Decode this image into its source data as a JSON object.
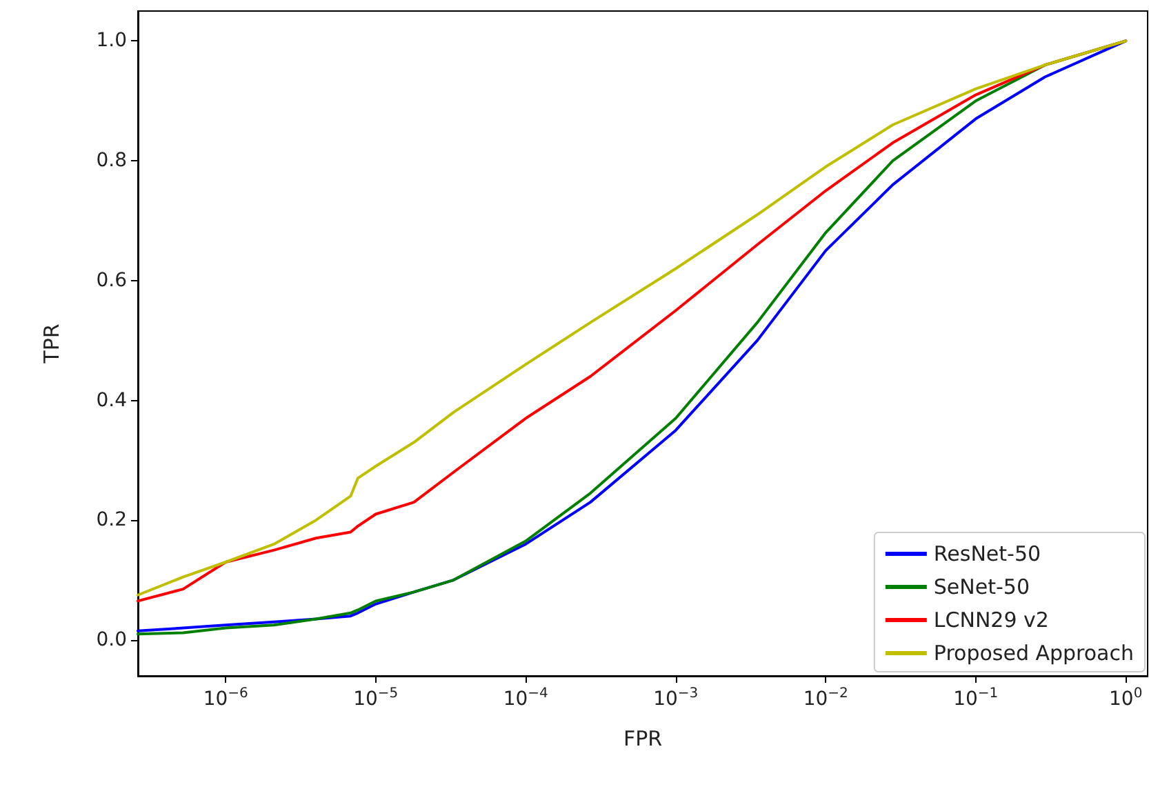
{
  "chart_data": {
    "type": "line",
    "xlabel": "FPR",
    "ylabel": "TPR",
    "x": [
      2.6e-07,
      5.2e-07,
      1e-06,
      2.1e-06,
      4e-06,
      6.8e-06,
      7.6e-06,
      1e-05,
      1.8e-05,
      3.3e-05,
      0.0001,
      0.00027,
      0.001,
      0.0035,
      0.01,
      0.028,
      0.1,
      0.29,
      1
    ],
    "series": [
      {
        "name": "ResNet-50",
        "color": "#0000ff",
        "values": [
          0.015,
          0.02,
          0.025,
          0.03,
          0.035,
          0.04,
          0.045,
          0.06,
          0.08,
          0.1,
          0.16,
          0.23,
          0.35,
          0.5,
          0.65,
          0.76,
          0.87,
          0.94,
          1.0
        ]
      },
      {
        "name": "SeNet-50",
        "color": "#008000",
        "values": [
          0.01,
          0.012,
          0.02,
          0.025,
          0.035,
          0.045,
          0.05,
          0.065,
          0.08,
          0.1,
          0.165,
          0.245,
          0.37,
          0.53,
          0.68,
          0.8,
          0.9,
          0.96,
          1.0
        ]
      },
      {
        "name": "LCNN29 v2",
        "color": "#ff0000",
        "values": [
          0.065,
          0.085,
          0.13,
          0.15,
          0.17,
          0.18,
          0.19,
          0.21,
          0.23,
          0.28,
          0.37,
          0.44,
          0.55,
          0.66,
          0.75,
          0.83,
          0.91,
          0.96,
          1.0
        ]
      },
      {
        "name": "Proposed Approach",
        "color": "#bfbf00",
        "values": [
          0.075,
          0.105,
          0.13,
          0.16,
          0.2,
          0.24,
          0.27,
          0.29,
          0.33,
          0.38,
          0.46,
          0.53,
          0.62,
          0.71,
          0.79,
          0.86,
          0.92,
          0.96,
          1.0
        ]
      }
    ],
    "xlim": [
      2.6e-07,
      1.4
    ],
    "ylim": [
      -0.06,
      1.05
    ],
    "xticks": [
      {
        "value": 1e-06,
        "label": "10$^{−6}$"
      },
      {
        "value": 1e-05,
        "label": "10$^{−5}$"
      },
      {
        "value": 0.0001,
        "label": "10$^{−4}$"
      },
      {
        "value": 0.001,
        "label": "10$^{−3}$"
      },
      {
        "value": 0.01,
        "label": "10$^{−2}$"
      },
      {
        "value": 0.1,
        "label": "10$^{−1}$"
      },
      {
        "value": 1,
        "label": "10$^{0}$"
      }
    ],
    "yticks": [
      {
        "value": 0,
        "label": "0.0"
      },
      {
        "value": 0.2,
        "label": "0.2"
      },
      {
        "value": 0.4,
        "label": "0.4"
      },
      {
        "value": 0.6,
        "label": "0.6"
      },
      {
        "value": 0.8,
        "label": "0.8"
      },
      {
        "value": 1.0,
        "label": "1.0"
      }
    ],
    "log": "x",
    "legend": "bottom right",
    "line_style": "solid",
    "marker": "none"
  }
}
